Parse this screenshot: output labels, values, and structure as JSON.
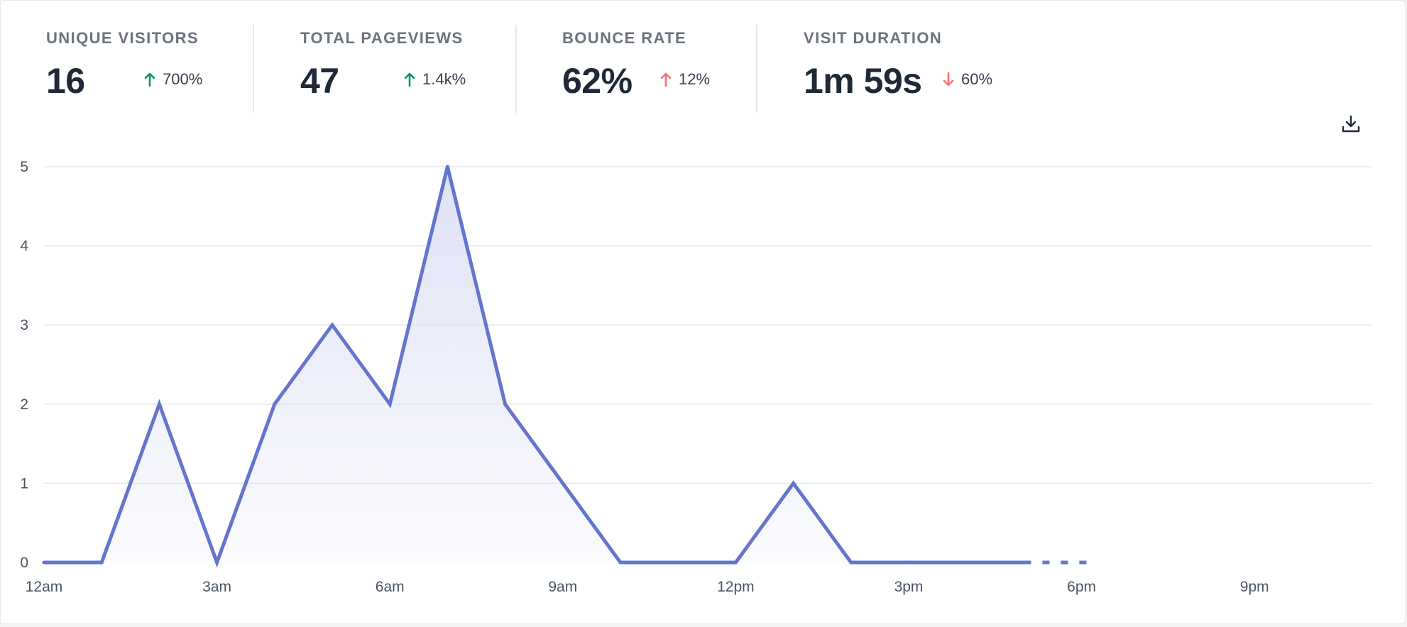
{
  "stats": [
    {
      "label": "UNIQUE VISITORS",
      "value": "16",
      "change": "700%",
      "direction": "up",
      "color": "#059669"
    },
    {
      "label": "TOTAL PAGEVIEWS",
      "value": "47",
      "change": "1.4k%",
      "direction": "up",
      "color": "#059669"
    },
    {
      "label": "BOUNCE RATE",
      "value": "62%",
      "change": "12%",
      "direction": "up",
      "color": "#f87171"
    },
    {
      "label": "VISIT DURATION",
      "value": "1m 59s",
      "change": "60%",
      "direction": "down",
      "color": "#f87171"
    }
  ],
  "download_icon": "download-icon",
  "colors": {
    "line": "#6574cd",
    "fill_top": "#e0e3f6",
    "grid": "#e5e7eb",
    "tick": "#4b5563"
  },
  "chart_data": {
    "type": "area",
    "x_unit": "hour",
    "x": [
      0,
      1,
      2,
      3,
      4,
      5,
      6,
      7,
      8,
      9,
      10,
      11,
      12,
      13,
      14,
      15,
      16,
      17
    ],
    "values": [
      0,
      0,
      2,
      0,
      2,
      3,
      2,
      5,
      2,
      1,
      0,
      0,
      0,
      1,
      0,
      0,
      0,
      0
    ],
    "current_segment_x": [
      17,
      18.2
    ],
    "current_segment_values": [
      0,
      0
    ],
    "x_range": [
      0,
      23
    ],
    "ylim": [
      0,
      5
    ],
    "yticks": [
      0,
      1,
      2,
      3,
      4,
      5
    ],
    "xticks": [
      {
        "hour": 0,
        "label": "12am"
      },
      {
        "hour": 3,
        "label": "3am"
      },
      {
        "hour": 6,
        "label": "6am"
      },
      {
        "hour": 9,
        "label": "9am"
      },
      {
        "hour": 12,
        "label": "12pm"
      },
      {
        "hour": 15,
        "label": "3pm"
      },
      {
        "hour": 18,
        "label": "6pm"
      },
      {
        "hour": 21,
        "label": "9pm"
      }
    ],
    "grid": true,
    "legend": "none",
    "title": "",
    "xlabel": "",
    "ylabel": ""
  }
}
